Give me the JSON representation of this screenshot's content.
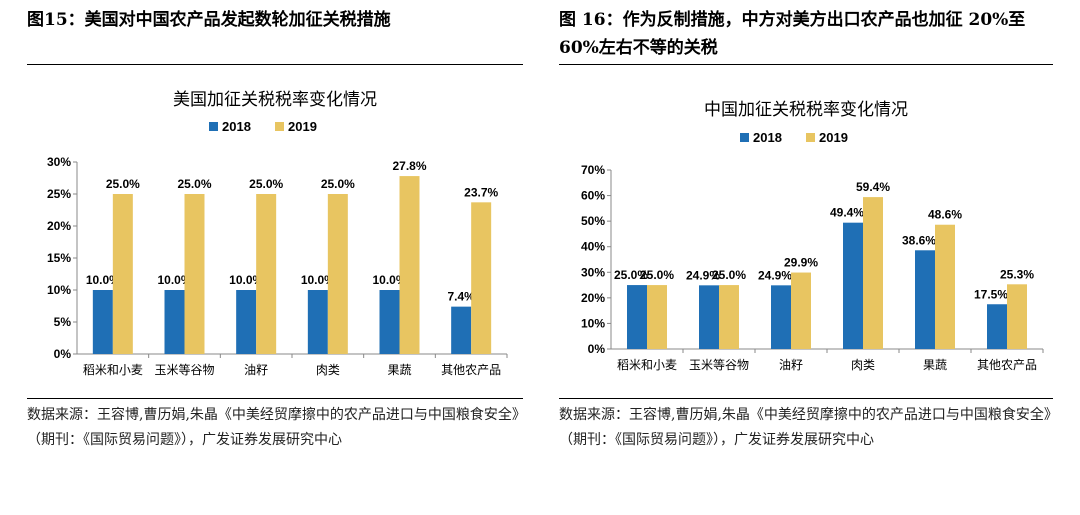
{
  "left": {
    "figure_title": "图15：美国对中国农产品发起数轮加征关税措施",
    "source": "数据来源：王容博,曹历娟,朱晶《中美经贸摩擦中的农产品进口与中国粮食安全》（期刊：《国际贸易问题》），广发证券发展研究中心"
  },
  "right": {
    "figure_title": "图 16：作为反制措施，中方对美方出口农产品也加征 20%至 60%左右不等的关税",
    "source": "数据来源：王容博,曹历娟,朱晶《中美经贸摩擦中的农产品进口与中国粮食安全》（期刊：《国际贸易问题》），广发证券发展研究中心"
  },
  "colors": {
    "s2018": "#1f6fb5",
    "s2019": "#e8c561",
    "axis": "#888888"
  },
  "chart_data": [
    {
      "type": "bar",
      "title": "美国加征关税税率变化情况",
      "categories": [
        "稻米和小麦",
        "玉米等谷物",
        "油籽",
        "肉类",
        "果蔬",
        "其他农产品"
      ],
      "series": [
        {
          "name": "2018",
          "values": [
            10.0,
            10.0,
            10.0,
            10.0,
            10.0,
            7.4
          ]
        },
        {
          "name": "2019",
          "values": [
            25.0,
            25.0,
            25.0,
            25.0,
            27.8,
            23.7
          ]
        }
      ],
      "labels_2018": [
        "10.0%",
        "10.0%",
        "10.0%",
        "10.0%",
        "10.0%",
        "7.4%"
      ],
      "labels_2019": [
        "25.0%",
        "25.0%",
        "25.0%",
        "25.0%",
        "27.8%",
        "23.7%"
      ],
      "yticks": [
        "0%",
        "5%",
        "10%",
        "15%",
        "20%",
        "25%",
        "30%"
      ],
      "ylim": [
        0,
        30
      ],
      "legend": "top"
    },
    {
      "type": "bar",
      "title": "中国加征关税税率变化情况",
      "categories": [
        "稻米和小麦",
        "玉米等谷物",
        "油籽",
        "肉类",
        "果蔬",
        "其他农产品"
      ],
      "series": [
        {
          "name": "2018",
          "values": [
            25.0,
            24.9,
            24.9,
            49.4,
            38.6,
            17.5
          ]
        },
        {
          "name": "2019",
          "values": [
            25.0,
            25.0,
            29.9,
            59.4,
            48.6,
            25.3
          ]
        }
      ],
      "labels_2018": [
        "25.0%",
        "24.9%",
        "24.9%",
        "49.4%",
        "38.6%",
        "17.5%"
      ],
      "labels_2019": [
        "25.0%",
        "25.0%",
        "29.9%",
        "59.4%",
        "48.6%",
        "25.3%"
      ],
      "yticks": [
        "0%",
        "10%",
        "20%",
        "30%",
        "40%",
        "50%",
        "60%",
        "70%"
      ],
      "ylim": [
        0,
        70
      ],
      "legend": "top"
    }
  ]
}
